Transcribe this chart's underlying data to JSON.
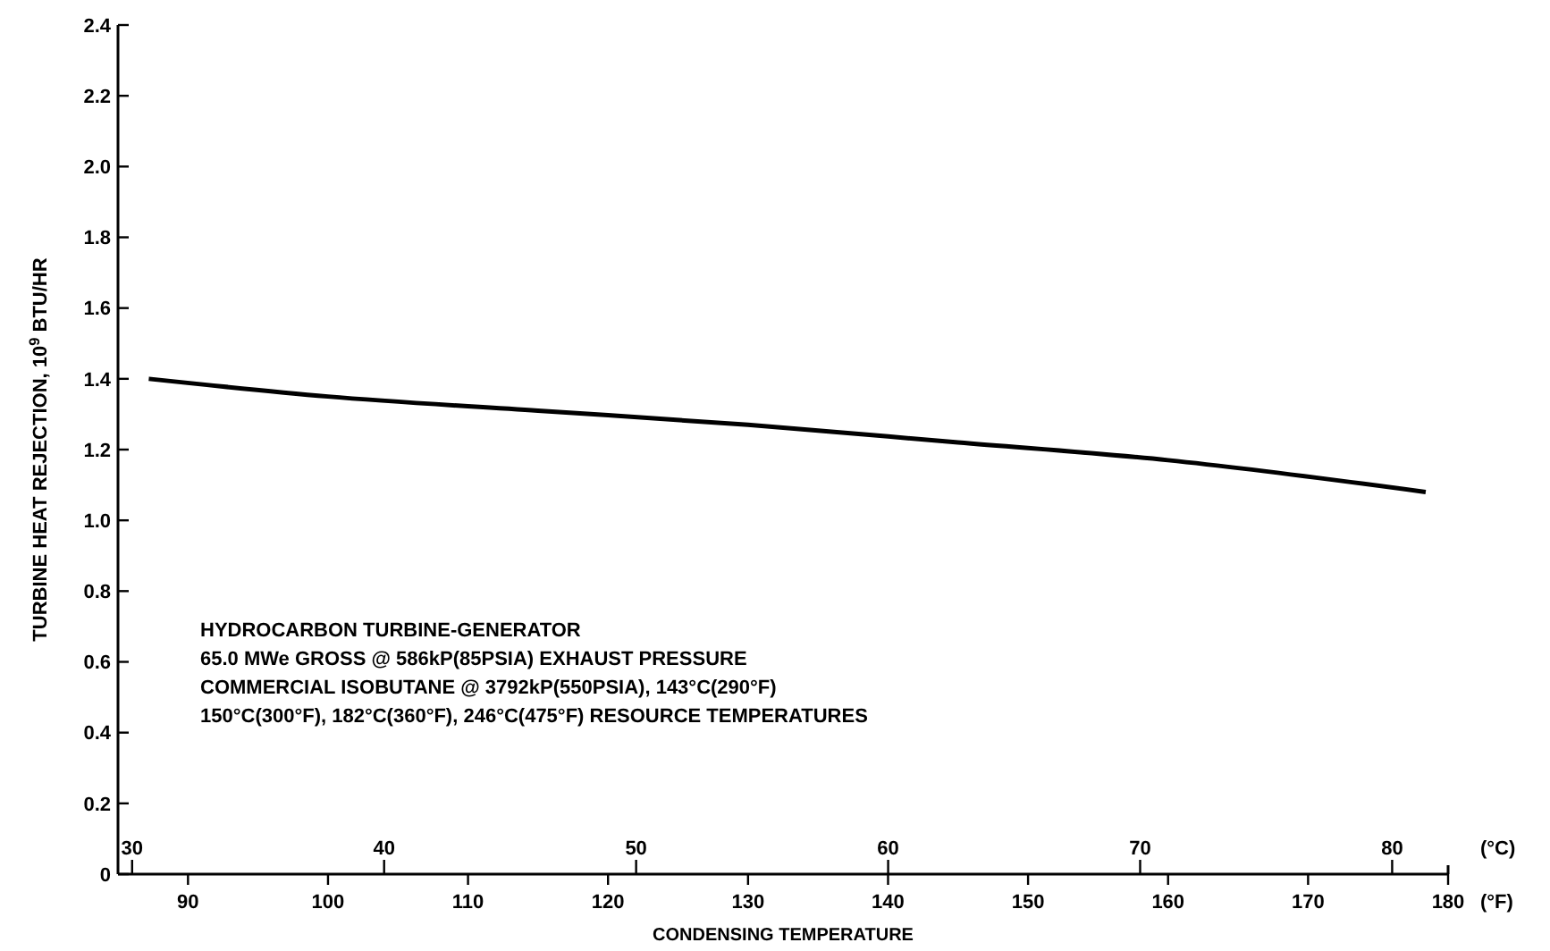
{
  "chart_data": {
    "type": "line",
    "xlabel": "CONDENSING TEMPERATURE",
    "ylabel": "TURBINE HEAT REJECTION, 10$^{9}$ BTU/HR",
    "x2label": "(°C)",
    "xlim": [
      85,
      180
    ],
    "xticks": [
      90,
      100,
      110,
      120,
      130,
      140,
      150,
      160,
      170,
      180
    ],
    "x2lim": [
      29.44,
      82.22
    ],
    "x2ticks": [
      30,
      40,
      50,
      60,
      70,
      80
    ],
    "ylim": [
      0,
      2.4
    ],
    "yticks": [
      0,
      {
        "value": 0.2,
        "label": "0.2"
      },
      {
        "value": 0.4,
        "label": "0.4"
      },
      {
        "value": 0.6,
        "label": "0.6"
      },
      {
        "value": 0.8,
        "label": "0.8"
      },
      {
        "value": 1,
        "label": "1.0"
      },
      {
        "value": 1.2,
        "label": "1.2"
      },
      {
        "value": 1.4,
        "label": "1.4"
      },
      {
        "value": 1.6,
        "label": "1.6"
      },
      {
        "value": 1.8,
        "label": "1.8"
      },
      {
        "value": 2,
        "label": "2.0"
      },
      {
        "value": 2.2,
        "label": "2.2"
      },
      {
        "value": 2.4,
        "label": "2.4"
      }
    ],
    "grid": false,
    "line_style": "solid",
    "series": [
      {
        "color": "#000000",
        "x": [
          87.2,
          100,
          115,
          130,
          145,
          160,
          178.4
        ],
        "values": [
          1.4,
          1.35,
          1.31,
          1.27,
          1.22,
          1.17,
          1.08
        ]
      }
    ],
    "annotations": [
      "(°F)",
      "HYDROCARBON TURBINE-GENERATOR",
      "65.0 MWe GROSS @ 586kP(85PSIA) EXHAUST PRESSURE",
      "COMMERCIAL ISOBUTANE @ 3792kP(550PSIA), 143°C(290°F)",
      "150°C(300°F), 182°C(360°F), 246°C(475°F) RESOURCE TEMPERATURES"
    ]
  }
}
